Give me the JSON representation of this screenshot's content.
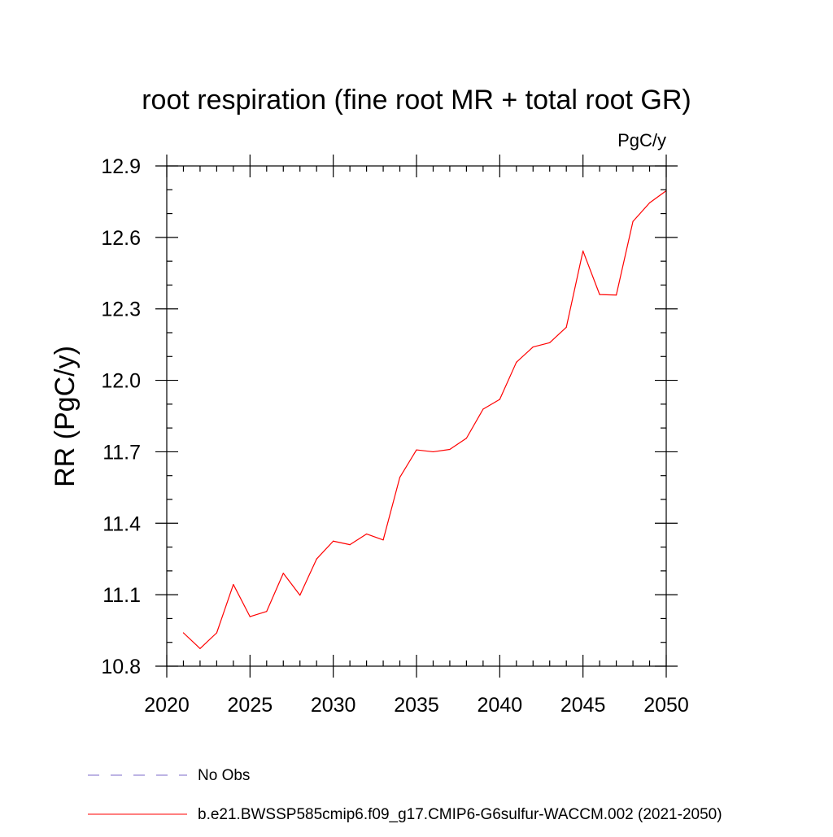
{
  "chart_data": {
    "type": "line",
    "title": "root respiration (fine root MR + total root GR)",
    "units_label": "PgC/y",
    "ylabel": "RR  (PgC/y)",
    "xlabel": "",
    "xlim": [
      2020,
      2050
    ],
    "ylim": [
      10.8,
      12.9
    ],
    "x_ticks": [
      2020,
      2025,
      2030,
      2035,
      2040,
      2045,
      2050
    ],
    "x_tick_labels": [
      "2020",
      "2025",
      "2030",
      "2035",
      "2040",
      "2045",
      "2050"
    ],
    "y_ticks": [
      10.8,
      11.1,
      11.4,
      11.7,
      12.0,
      12.3,
      12.6,
      12.9
    ],
    "y_tick_labels": [
      "10.8",
      "11.1",
      "11.4",
      "11.7",
      "12.0",
      "12.3",
      "12.6",
      "12.9"
    ],
    "x_minor_step": 1,
    "y_minor_step": 0.1,
    "grid": false,
    "legend_position": "bottom",
    "series": [
      {
        "name": "b.e21.BWSSP585cmip6.f09_g17.CMIP6-G6sulfur-WACCM.002 (2021-2050)",
        "color": "#ff0000",
        "style": "solid",
        "x": [
          2021,
          2022,
          2023,
          2024,
          2025,
          2026,
          2027,
          2028,
          2029,
          2030,
          2031,
          2032,
          2033,
          2034,
          2035,
          2036,
          2037,
          2038,
          2039,
          2040,
          2041,
          2042,
          2043,
          2044,
          2045,
          2046,
          2047,
          2048,
          2049,
          2050
        ],
        "values": [
          10.94,
          10.874,
          10.94,
          11.143,
          11.008,
          11.03,
          11.19,
          11.098,
          11.25,
          11.325,
          11.31,
          11.355,
          11.33,
          11.593,
          11.708,
          11.7,
          11.71,
          11.757,
          11.879,
          11.92,
          12.076,
          12.14,
          12.158,
          12.223,
          12.543,
          12.36,
          12.358,
          12.667,
          12.745,
          12.796
        ]
      }
    ],
    "legend": [
      {
        "label": "No Obs",
        "color": "#7b68c8",
        "style": "dashed"
      },
      {
        "label": "b.e21.BWSSP585cmip6.f09_g17.CMIP6-G6sulfur-WACCM.002 (2021-2050)",
        "color": "#ff0000",
        "style": "solid"
      }
    ]
  }
}
